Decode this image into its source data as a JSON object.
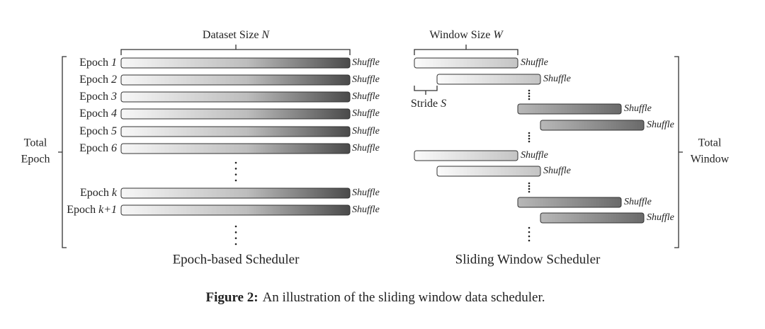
{
  "epoch_scheduler": {
    "size_label": "Dataset Size",
    "size_symbol": "N",
    "total_label": [
      "Total",
      "Epoch"
    ],
    "rows": [
      {
        "label": "Epoch",
        "index": "1",
        "action": "Shuffle"
      },
      {
        "label": "Epoch",
        "index": "2",
        "action": "Shuffle"
      },
      {
        "label": "Epoch",
        "index": "3",
        "action": "Shuffle"
      },
      {
        "label": "Epoch",
        "index": "4",
        "action": "Shuffle"
      },
      {
        "label": "Epoch",
        "index": "5",
        "action": "Shuffle"
      },
      {
        "label": "Epoch",
        "index": "6",
        "action": "Shuffle"
      },
      {
        "label": "Epoch",
        "index": "k",
        "action": "Shuffle"
      },
      {
        "label": "Epoch",
        "index": "k+1",
        "action": "Shuffle"
      }
    ],
    "title": "Epoch-based Scheduler"
  },
  "window_scheduler": {
    "size_label": "Window Size",
    "size_symbol": "W",
    "stride_label": "Stride",
    "stride_symbol": "S",
    "total_label": [
      "Total",
      "Window"
    ],
    "windows": [
      {
        "action": "Shuffle"
      },
      {
        "action": "Shuffle"
      },
      {
        "action": "Shuffle"
      },
      {
        "action": "Shuffle"
      },
      {
        "action": "Shuffle"
      },
      {
        "action": "Shuffle"
      },
      {
        "action": "Shuffle"
      },
      {
        "action": "Shuffle"
      }
    ],
    "title": "Sliding Window Scheduler"
  },
  "caption": {
    "label": "Figure 2:",
    "text": "An illustration of the sliding window data scheduler."
  }
}
